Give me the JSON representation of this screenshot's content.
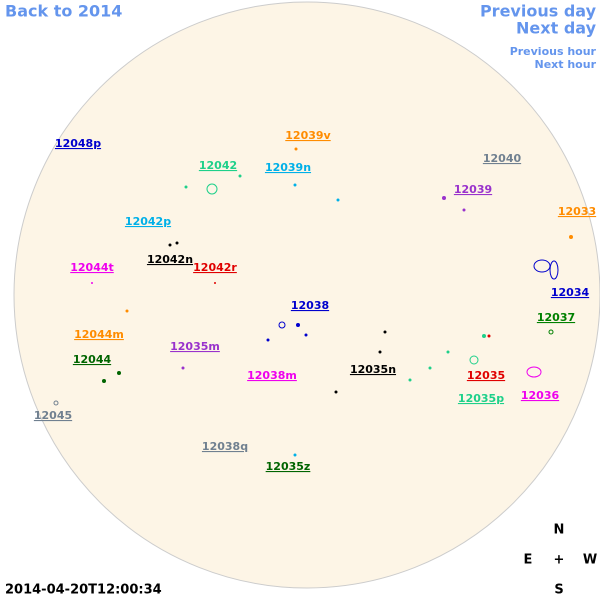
{
  "navigation": {
    "back": "Back to 2014",
    "previous_day": "Previous day",
    "next_day": "Next day",
    "previous_hour": "Previous hour",
    "next_hour": "Next hour",
    "color": "#6495ed"
  },
  "regions": [
    {
      "label": "12048p",
      "color": "#0000cd"
    },
    {
      "label": "12039v",
      "color": "#ff8c00"
    },
    {
      "label": "12042",
      "color": "#1ed08a"
    },
    {
      "label": "12039n",
      "color": "#00b0e8"
    },
    {
      "label": "12040",
      "color": "#708090"
    },
    {
      "label": "12039",
      "color": "#9932cc"
    },
    {
      "label": "12033",
      "color": "#ff8c00"
    },
    {
      "label": "12042p",
      "color": "#00b0e8"
    },
    {
      "label": "12042n",
      "color": "#000000"
    },
    {
      "label": "12042r",
      "color": "#e00000"
    },
    {
      "label": "12044t",
      "color": "#ee00ee"
    },
    {
      "label": "12034",
      "color": "#0000cd"
    },
    {
      "label": "12038",
      "color": "#0000cd"
    },
    {
      "label": "12037",
      "color": "#008000"
    },
    {
      "label": "12044m",
      "color": "#ff8c00"
    },
    {
      "label": "12035m",
      "color": "#9932cc"
    },
    {
      "label": "12044",
      "color": "#006400"
    },
    {
      "label": "12035n",
      "color": "#000000"
    },
    {
      "label": "12038m",
      "color": "#ee00ee"
    },
    {
      "label": "12035",
      "color": "#e00000"
    },
    {
      "label": "12036",
      "color": "#ee00ee"
    },
    {
      "label": "12035p",
      "color": "#1ed08a"
    },
    {
      "label": "12045",
      "color": "#708090"
    },
    {
      "label": "12038q",
      "color": "#708090"
    },
    {
      "label": "12035z",
      "color": "#006400"
    }
  ],
  "timestamp": "2014-04-20T12:00:34",
  "compass": {
    "north": "N",
    "east": "E",
    "center": "+",
    "west": "W",
    "south": "S"
  }
}
